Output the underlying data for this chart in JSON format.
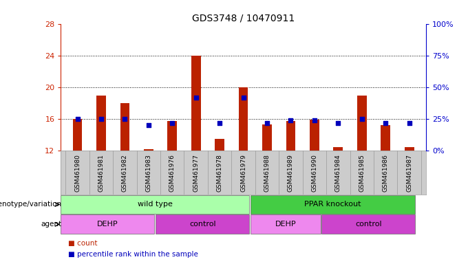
{
  "title": "GDS3748 / 10470911",
  "samples": [
    "GSM461980",
    "GSM461981",
    "GSM461982",
    "GSM461983",
    "GSM461976",
    "GSM461977",
    "GSM461978",
    "GSM461979",
    "GSM461988",
    "GSM461989",
    "GSM461990",
    "GSM461984",
    "GSM461985",
    "GSM461986",
    "GSM461987"
  ],
  "count_values": [
    16.0,
    19.0,
    18.0,
    12.2,
    15.8,
    24.0,
    13.5,
    20.0,
    15.3,
    15.8,
    15.9,
    12.5,
    19.0,
    15.2,
    12.5
  ],
  "percentile_values": [
    25,
    25,
    25,
    20,
    22,
    42,
    22,
    42,
    22,
    24,
    24,
    22,
    25,
    22,
    22
  ],
  "ylim_left": [
    12,
    28
  ],
  "ylim_right": [
    0,
    100
  ],
  "yticks_left": [
    12,
    16,
    20,
    24,
    28
  ],
  "yticks_right": [
    0,
    25,
    50,
    75,
    100
  ],
  "bar_color": "#bb2200",
  "dot_color": "#0000bb",
  "left_axis_color": "#cc2200",
  "right_axis_color": "#0000cc",
  "tick_bg_color": "#cccccc",
  "genotype_groups": [
    {
      "name": "wild type",
      "start": 0,
      "end": 8,
      "color": "#aaffaa"
    },
    {
      "name": "PPAR knockout",
      "start": 8,
      "end": 15,
      "color": "#44cc44"
    }
  ],
  "agent_groups": [
    {
      "name": "DEHP",
      "start": 0,
      "end": 4,
      "color": "#ee88ee"
    },
    {
      "name": "control",
      "start": 4,
      "end": 8,
      "color": "#cc44cc"
    },
    {
      "name": "DEHP",
      "start": 8,
      "end": 11,
      "color": "#ee88ee"
    },
    {
      "name": "control",
      "start": 11,
      "end": 15,
      "color": "#cc44cc"
    }
  ],
  "genotype_label": "genotype/variation",
  "agent_label": "agent",
  "legend_count": "count",
  "legend_pct": "percentile rank within the sample",
  "bar_width": 0.4
}
